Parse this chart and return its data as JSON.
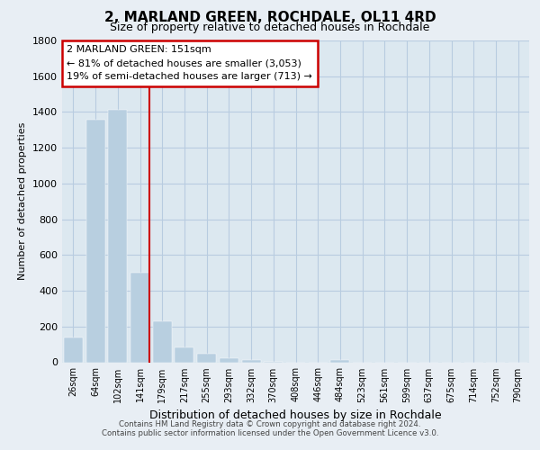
{
  "title": "2, MARLAND GREEN, ROCHDALE, OL11 4RD",
  "subtitle": "Size of property relative to detached houses in Rochdale",
  "xlabel": "Distribution of detached houses by size in Rochdale",
  "ylabel": "Number of detached properties",
  "bar_labels": [
    "26sqm",
    "64sqm",
    "102sqm",
    "141sqm",
    "179sqm",
    "217sqm",
    "255sqm",
    "293sqm",
    "332sqm",
    "370sqm",
    "408sqm",
    "446sqm",
    "484sqm",
    "523sqm",
    "561sqm",
    "599sqm",
    "637sqm",
    "675sqm",
    "714sqm",
    "752sqm",
    "790sqm"
  ],
  "bar_values": [
    140,
    1355,
    1410,
    500,
    230,
    85,
    50,
    25,
    15,
    5,
    0,
    0,
    15,
    0,
    0,
    0,
    0,
    0,
    0,
    0,
    0
  ],
  "bar_color": "#b8cfe0",
  "marker_index": 3,
  "marker_color": "#cc0000",
  "marker_label": "2 MARLAND GREEN: 151sqm",
  "annotation_line1": "← 81% of detached houses are smaller (3,053)",
  "annotation_line2": "19% of semi-detached houses are larger (713) →",
  "ylim": [
    0,
    1800
  ],
  "yticks": [
    0,
    200,
    400,
    600,
    800,
    1000,
    1200,
    1400,
    1600,
    1800
  ],
  "footer_line1": "Contains HM Land Registry data © Crown copyright and database right 2024.",
  "footer_line2": "Contains public sector information licensed under the Open Government Licence v3.0.",
  "bg_color": "#e8eef4",
  "plot_bg_color": "#dce8f0",
  "grid_color": "#b8cce0"
}
